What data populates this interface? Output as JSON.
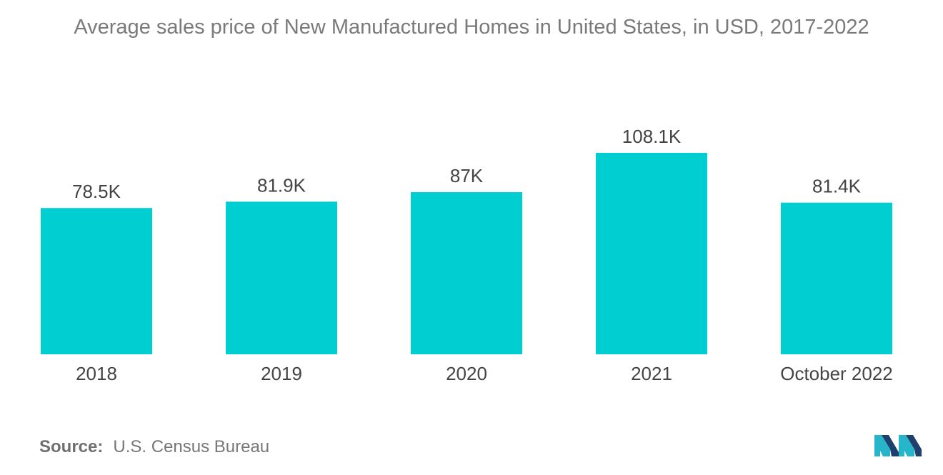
{
  "chart_data": {
    "type": "bar",
    "title": "Average sales price of New Manufactured Homes in United States, in USD, 2017-2022",
    "categories": [
      "2018",
      "2019",
      "2020",
      "2021",
      "October 2022"
    ],
    "values": [
      78.5,
      81.9,
      87,
      108.1,
      81.4
    ],
    "value_labels": [
      "78.5K",
      "81.9K",
      "87K",
      "108.1K",
      "81.4K"
    ],
    "xlabel": "",
    "ylabel": "",
    "ylim": [
      0,
      108.1
    ],
    "grid": false,
    "legend": "none",
    "bar_color": "#00ced1"
  },
  "source": {
    "label": "Source:",
    "text": "U.S. Census Bureau"
  },
  "logo": {
    "icon": "mordor-intelligence-logo-icon",
    "colors": [
      "#1f3f6e",
      "#27b5c9"
    ]
  }
}
